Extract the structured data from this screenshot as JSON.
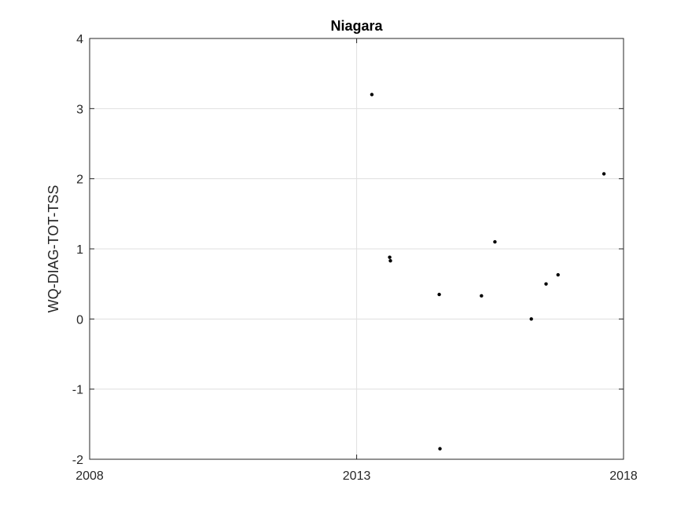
{
  "chart_data": {
    "type": "scatter",
    "title": "Niagara",
    "xlabel": "",
    "ylabel": "WQ-DIAG-TOT-TSS",
    "xlim": [
      "2008-01-01",
      "2018-01-01"
    ],
    "ylim": [
      -2,
      4
    ],
    "xticks": [
      "2008-01-01",
      "2013-01-01",
      "2018-01-01"
    ],
    "xtick_labels": [
      "2008",
      "2013",
      "2018"
    ],
    "yticks": [
      -2,
      -1,
      0,
      1,
      2,
      3,
      4
    ],
    "ytick_labels": [
      "-2",
      "-1",
      "0",
      "1",
      "2",
      "3",
      "4"
    ],
    "grid": true,
    "marker_color": "#000000",
    "points": [
      {
        "x": "2013-04-15",
        "y": 3.2
      },
      {
        "x": "2013-08-15",
        "y": 0.88
      },
      {
        "x": "2013-08-20",
        "y": 0.83
      },
      {
        "x": "2014-07-20",
        "y": 0.35
      },
      {
        "x": "2014-07-25",
        "y": -1.85
      },
      {
        "x": "2015-05-05",
        "y": 0.33
      },
      {
        "x": "2015-08-05",
        "y": 1.1
      },
      {
        "x": "2016-04-10",
        "y": 0.0
      },
      {
        "x": "2016-07-20",
        "y": 0.5
      },
      {
        "x": "2016-10-10",
        "y": 0.63
      },
      {
        "x": "2017-08-20",
        "y": 2.07
      }
    ]
  }
}
